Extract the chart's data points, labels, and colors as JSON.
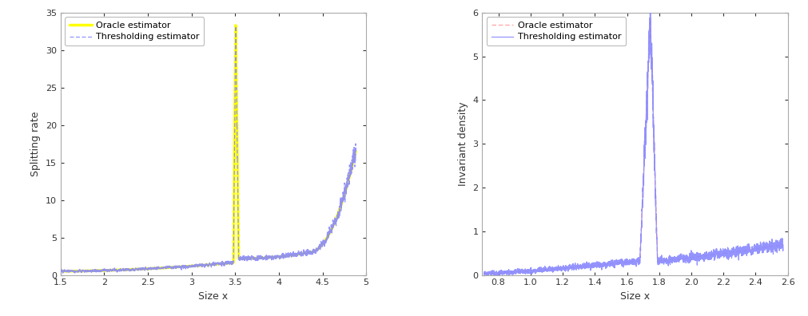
{
  "plot1": {
    "xlim": [
      1.5,
      5.0
    ],
    "ylim": [
      0,
      35
    ],
    "xlabel": "Size x",
    "ylabel": "Splitting rate",
    "xticks": [
      1.5,
      2.0,
      2.5,
      3.0,
      3.5,
      4.0,
      4.5,
      5.0
    ],
    "yticks": [
      0,
      5,
      10,
      15,
      20,
      25,
      30,
      35
    ],
    "oracle_color": "#ffff00",
    "thresh_color": "#8888ff",
    "thresh_dash_color": "#ffaaaa",
    "spike_x": 3.5,
    "spike_height": 33.5,
    "spike_drop": 2.2,
    "legend_oracle": "Oracle estimator",
    "legend_thresh": "Thresholding estimator"
  },
  "plot2": {
    "xlim": [
      0.7,
      2.6
    ],
    "ylim": [
      0,
      6
    ],
    "xlabel": "Size x",
    "ylabel": "Invariant density",
    "xticks": [
      0.8,
      1.0,
      1.2,
      1.4,
      1.6,
      1.8,
      2.0,
      2.2,
      2.4,
      2.6
    ],
    "yticks": [
      0,
      1,
      2,
      3,
      4,
      5,
      6
    ],
    "oracle_color": "#ffaaaa",
    "thresh_color": "#8888ff",
    "spike_x": 1.75,
    "spike_height": 5.85,
    "spike_drop": 0.35,
    "legend_oracle": "Oracle estimator",
    "legend_thresh": "Thresholding estimator"
  },
  "bg_color": "#ffffff",
  "figsize": [
    10.11,
    3.96
  ],
  "dpi": 100
}
